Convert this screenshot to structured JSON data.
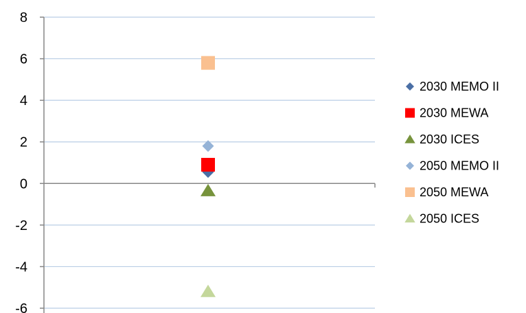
{
  "chart_data": {
    "type": "scatter",
    "title": "",
    "xlabel": "",
    "ylabel": "",
    "ylim": [
      -6,
      8
    ],
    "yticks": [
      -6,
      -4,
      -2,
      0,
      2,
      4,
      6,
      8
    ],
    "ytick_labels": [
      "-6",
      "-4",
      "-2",
      "0",
      "2",
      "4",
      "6",
      "8"
    ],
    "grid": "horizontal",
    "legend_position": "right",
    "series": [
      {
        "name": "2030 MEMO II",
        "marker": "diamond",
        "color": "#4a6fa5",
        "values": [
          0.55
        ]
      },
      {
        "name": "2030 MEWA",
        "marker": "square",
        "color": "#ff0000",
        "values": [
          0.9
        ]
      },
      {
        "name": "2030 ICES",
        "marker": "triangle",
        "color": "#77933c",
        "values": [
          -0.35
        ]
      },
      {
        "name": "2050 MEMO II",
        "marker": "diamond",
        "color": "#95b3d7",
        "values": [
          1.8
        ]
      },
      {
        "name": "2050 MEWA",
        "marker": "square",
        "color": "#fac090",
        "values": [
          5.8
        ]
      },
      {
        "name": "2050 ICES",
        "marker": "triangle",
        "color": "#c4d79b",
        "values": [
          -5.2
        ]
      }
    ]
  }
}
